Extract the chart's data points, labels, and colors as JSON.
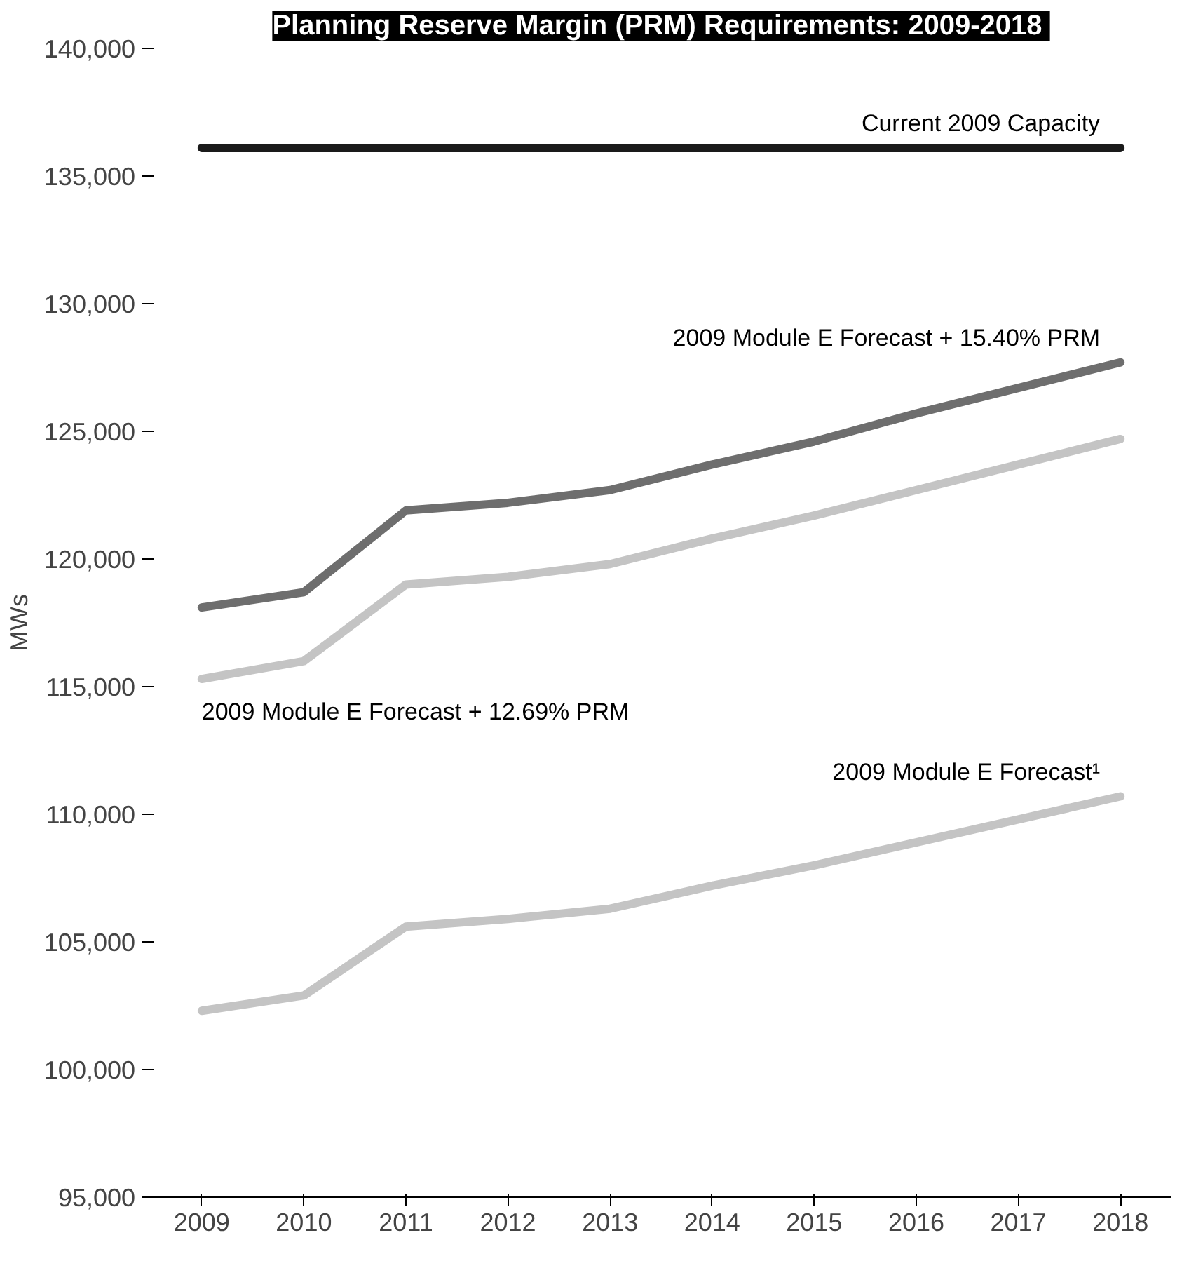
{
  "chart_data": {
    "type": "line",
    "title": "Planning Reserve Margin (PRM) Requirements:  2009-2018",
    "ylabel": "MWs",
    "categories": [
      "2009",
      "2010",
      "2011",
      "2012",
      "2013",
      "2014",
      "2015",
      "2016",
      "2017",
      "2018"
    ],
    "ylim": [
      95000,
      140000
    ],
    "yticks": [
      {
        "value": 95000,
        "label": "95,000"
      },
      {
        "value": 100000,
        "label": "100,000"
      },
      {
        "value": 105000,
        "label": "105,000"
      },
      {
        "value": 110000,
        "label": "110,000"
      },
      {
        "value": 115000,
        "label": "115,000"
      },
      {
        "value": 120000,
        "label": "120,000"
      },
      {
        "value": 125000,
        "label": "125,000"
      },
      {
        "value": 130000,
        "label": "130,000"
      },
      {
        "value": 135000,
        "label": "135,000"
      },
      {
        "value": 140000,
        "label": "140,000"
      }
    ],
    "grid": false,
    "legend": false,
    "marker": "none",
    "line_style": "solid",
    "series": [
      {
        "name": "Current 2009 Capacity",
        "color": "#1a1a1a",
        "values": [
          136100,
          136100,
          136100,
          136100,
          136100,
          136100,
          136100,
          136100,
          136100,
          136100
        ]
      },
      {
        "name": "2009 Module E Forecast + 15.40% PRM",
        "color": "#6e6e6e",
        "values": [
          118100,
          118700,
          121900,
          122200,
          122700,
          123700,
          124600,
          125700,
          126700,
          127700
        ]
      },
      {
        "name": "2009 Module E Forecast + 12.69% PRM",
        "color": "#c4c4c4",
        "values": [
          115300,
          116000,
          119000,
          119300,
          119800,
          120800,
          121700,
          122700,
          123700,
          124700
        ]
      },
      {
        "name": "2009 Module E Forecast¹",
        "color": "#c4c4c4",
        "values": [
          102300,
          102900,
          105600,
          105900,
          106300,
          107200,
          108000,
          108900,
          109800,
          110700
        ]
      }
    ]
  }
}
